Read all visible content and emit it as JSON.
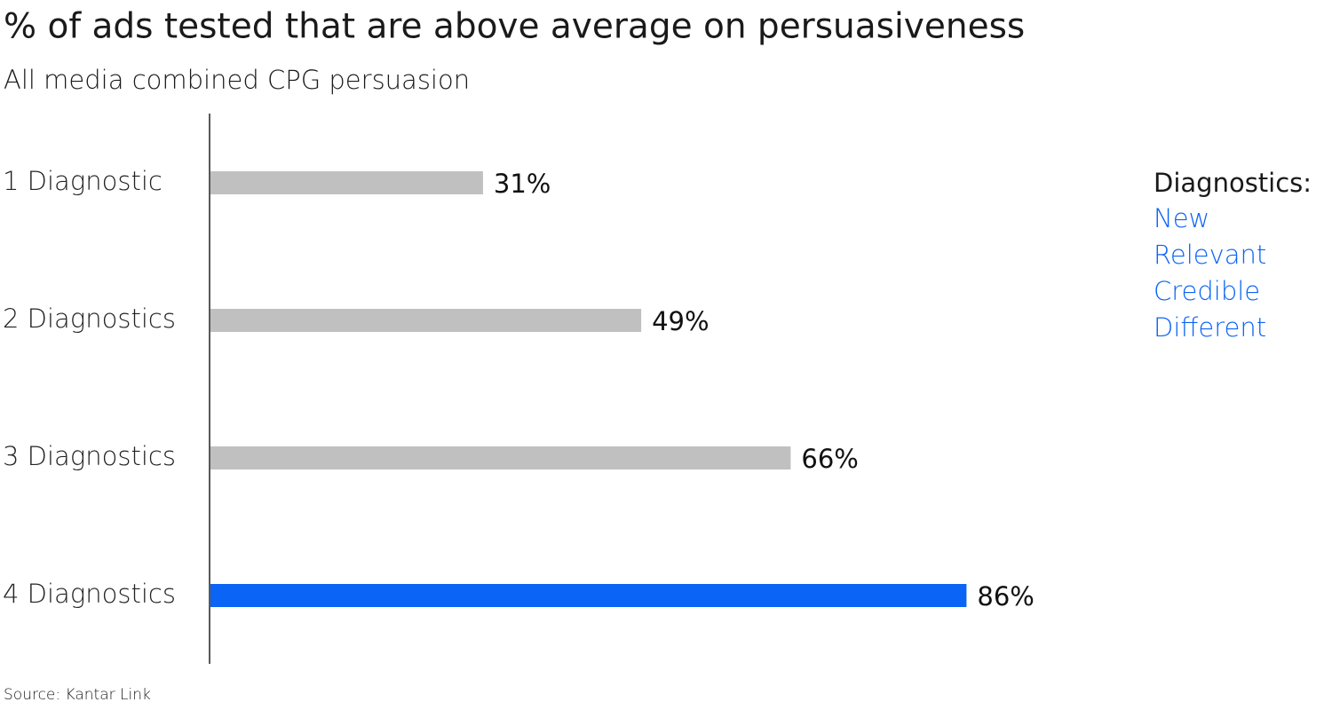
{
  "chart_data": {
    "type": "bar",
    "orientation": "horizontal",
    "title": "% of ads tested that are above average on persuasiveness",
    "subtitle": "All media combined CPG persuasion",
    "categories": [
      "1 Diagnostic",
      "2 Diagnostics",
      "3 Diagnostics",
      "4 Diagnostics"
    ],
    "values": [
      31,
      49,
      66,
      86
    ],
    "value_labels": [
      "31%",
      "49%",
      "66%",
      "86%"
    ],
    "colors": [
      "#c0c0c0",
      "#c0c0c0",
      "#c0c0c0",
      "#0a64f5"
    ],
    "annotations": {
      "heading": "Diagnostics:",
      "items": [
        "New",
        "Relevant",
        "Credible",
        "Different"
      ],
      "items_color": "#0a64f5"
    },
    "source": "Source: Kantar Link"
  }
}
